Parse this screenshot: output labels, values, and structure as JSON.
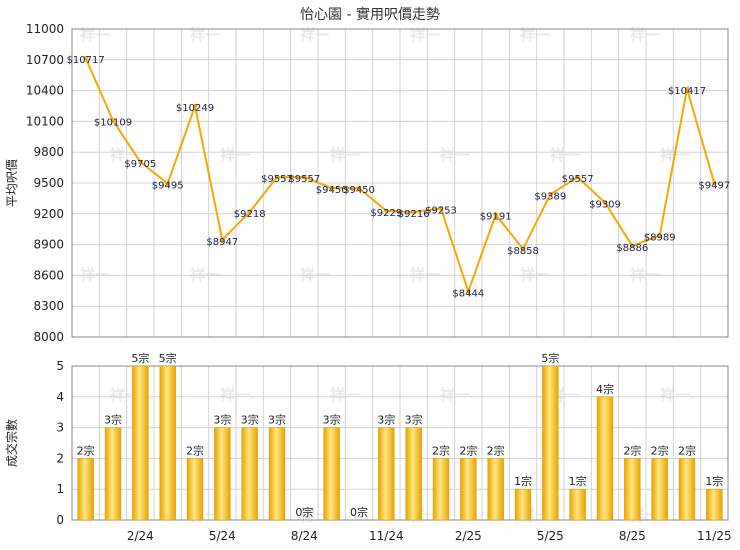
{
  "title": "怡心園 - 實用呎價走勢",
  "watermark": "祥一",
  "colors": {
    "line": "#f5a800",
    "bar_light": "#ffe680",
    "bar_dark": "#e8a400",
    "grid": "#d3d3d3",
    "axis": "#888888"
  },
  "chart_data": [
    {
      "type": "line",
      "ylabel": "平均呎價",
      "ylim": [
        8000,
        11000
      ],
      "yticks": [
        8000,
        8300,
        8600,
        8900,
        9200,
        9500,
        9800,
        10100,
        10400,
        10700,
        11000
      ],
      "values": [
        10717,
        10109,
        9705,
        9495,
        10249,
        8947,
        9218,
        9557,
        9557,
        9450,
        9450,
        9229,
        9216,
        9253,
        8444,
        9191,
        8858,
        9389,
        9557,
        9309,
        8886,
        8989,
        10417,
        9497
      ],
      "labels": [
        "$10717",
        "$10109",
        "$9705",
        "$9495",
        "$10249",
        "$8947",
        "$9218",
        "$9557",
        "$9557",
        "$9450",
        "$9450",
        "$9229",
        "$9216",
        "$9253",
        "$8444",
        "$9191",
        "$8858",
        "$9389",
        "$9557",
        "$9309",
        "$8886",
        "$8989",
        "$10417",
        "$9497"
      ]
    },
    {
      "type": "bar",
      "ylabel": "成交宗數",
      "ylim": [
        0,
        5
      ],
      "yticks": [
        0,
        1,
        2,
        3,
        4,
        5
      ],
      "values": [
        2,
        3,
        5,
        5,
        2,
        3,
        3,
        3,
        0,
        3,
        0,
        3,
        3,
        2,
        2,
        2,
        1,
        5,
        1,
        4,
        2,
        2,
        2,
        1
      ],
      "labels": [
        "2宗",
        "3宗",
        "5宗",
        "5宗",
        "2宗",
        "3宗",
        "3宗",
        "3宗",
        "0宗",
        "3宗",
        "0宗",
        "3宗",
        "3宗",
        "2宗",
        "2宗",
        "2宗",
        "1宗",
        "5宗",
        "1宗",
        "4宗",
        "2宗",
        "2宗",
        "2宗",
        "1宗"
      ],
      "xticks": [
        "2/24",
        "5/24",
        "8/24",
        "11/24",
        "2/25",
        "5/25",
        "8/25",
        "11/25"
      ]
    }
  ]
}
